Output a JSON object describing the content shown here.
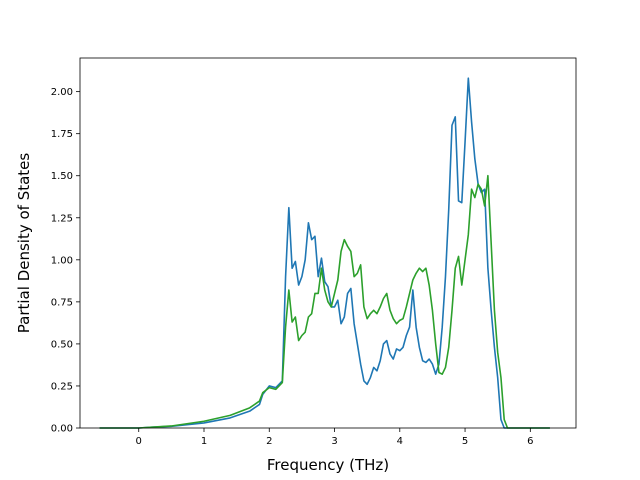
{
  "chart_data": {
    "type": "line",
    "xlabel": "Frequency (THz)",
    "ylabel": "Partial Density of States",
    "xlim": [
      -0.9,
      6.7
    ],
    "ylim": [
      0.0,
      2.2
    ],
    "xticks": [
      0,
      1,
      2,
      3,
      4,
      5,
      6
    ],
    "xtick_labels": [
      "0",
      "1",
      "2",
      "3",
      "4",
      "5",
      "6"
    ],
    "yticks": [
      0.0,
      0.25,
      0.5,
      0.75,
      1.0,
      1.25,
      1.5,
      1.75,
      2.0
    ],
    "ytick_labels": [
      "0.00",
      "0.25",
      "0.50",
      "0.75",
      "1.00",
      "1.25",
      "1.50",
      "1.75",
      "2.00"
    ],
    "grid": false,
    "series": [
      {
        "color": "#1f77b4",
        "x": [
          -0.6,
          0.0,
          0.2,
          0.5,
          1.0,
          1.4,
          1.7,
          1.85,
          1.9,
          2.0,
          2.1,
          2.2,
          2.25,
          2.3,
          2.35,
          2.4,
          2.45,
          2.5,
          2.55,
          2.6,
          2.65,
          2.7,
          2.75,
          2.8,
          2.85,
          2.9,
          2.95,
          3.0,
          3.05,
          3.1,
          3.15,
          3.2,
          3.25,
          3.3,
          3.35,
          3.4,
          3.45,
          3.5,
          3.55,
          3.6,
          3.65,
          3.7,
          3.75,
          3.8,
          3.85,
          3.9,
          3.95,
          4.0,
          4.05,
          4.1,
          4.15,
          4.2,
          4.25,
          4.3,
          4.35,
          4.4,
          4.45,
          4.5,
          4.55,
          4.6,
          4.65,
          4.7,
          4.75,
          4.8,
          4.85,
          4.9,
          4.95,
          5.0,
          5.05,
          5.1,
          5.15,
          5.2,
          5.25,
          5.3,
          5.35,
          5.4,
          5.45,
          5.5,
          5.55,
          5.6,
          5.65,
          5.7,
          5.75,
          5.8,
          6.0,
          6.3
        ],
        "y": [
          0.0,
          0.0,
          0.005,
          0.01,
          0.03,
          0.06,
          0.1,
          0.14,
          0.2,
          0.25,
          0.24,
          0.28,
          0.9,
          1.31,
          0.95,
          0.99,
          0.85,
          0.9,
          1.0,
          1.22,
          1.12,
          1.14,
          0.9,
          1.01,
          0.87,
          0.84,
          0.72,
          0.72,
          0.76,
          0.62,
          0.66,
          0.8,
          0.83,
          0.62,
          0.5,
          0.38,
          0.28,
          0.26,
          0.3,
          0.36,
          0.34,
          0.4,
          0.5,
          0.52,
          0.44,
          0.41,
          0.47,
          0.46,
          0.48,
          0.55,
          0.6,
          0.82,
          0.6,
          0.48,
          0.4,
          0.39,
          0.41,
          0.38,
          0.32,
          0.38,
          0.6,
          0.9,
          1.3,
          1.8,
          1.85,
          1.35,
          1.34,
          1.7,
          2.08,
          1.82,
          1.6,
          1.45,
          1.4,
          1.42,
          0.95,
          0.7,
          0.48,
          0.3,
          0.05,
          0.0,
          0.0,
          0.0,
          0.0,
          0.0,
          0.0,
          0.0
        ]
      },
      {
        "color": "#2ca02c",
        "x": [
          -0.6,
          0.0,
          0.2,
          0.5,
          1.0,
          1.4,
          1.7,
          1.85,
          1.9,
          2.0,
          2.1,
          2.2,
          2.25,
          2.3,
          2.35,
          2.4,
          2.45,
          2.5,
          2.55,
          2.6,
          2.65,
          2.7,
          2.75,
          2.8,
          2.85,
          2.9,
          2.95,
          3.0,
          3.05,
          3.1,
          3.15,
          3.2,
          3.25,
          3.3,
          3.35,
          3.4,
          3.45,
          3.5,
          3.55,
          3.6,
          3.65,
          3.7,
          3.75,
          3.8,
          3.85,
          3.9,
          3.95,
          4.0,
          4.05,
          4.1,
          4.15,
          4.2,
          4.25,
          4.3,
          4.35,
          4.4,
          4.45,
          4.5,
          4.55,
          4.6,
          4.65,
          4.7,
          4.75,
          4.8,
          4.85,
          4.9,
          4.95,
          5.0,
          5.05,
          5.1,
          5.15,
          5.2,
          5.25,
          5.3,
          5.35,
          5.4,
          5.45,
          5.5,
          5.55,
          5.6,
          5.65,
          5.7,
          5.75,
          5.8,
          6.0,
          6.3
        ],
        "y": [
          0.0,
          0.0,
          0.005,
          0.012,
          0.04,
          0.075,
          0.12,
          0.16,
          0.21,
          0.24,
          0.23,
          0.27,
          0.6,
          0.82,
          0.63,
          0.66,
          0.52,
          0.55,
          0.57,
          0.66,
          0.68,
          0.8,
          0.8,
          0.95,
          0.82,
          0.75,
          0.72,
          0.8,
          0.88,
          1.05,
          1.12,
          1.08,
          1.05,
          0.9,
          0.92,
          0.97,
          0.72,
          0.65,
          0.68,
          0.7,
          0.68,
          0.72,
          0.77,
          0.8,
          0.7,
          0.65,
          0.62,
          0.64,
          0.65,
          0.72,
          0.8,
          0.88,
          0.92,
          0.95,
          0.93,
          0.95,
          0.85,
          0.7,
          0.5,
          0.33,
          0.32,
          0.36,
          0.48,
          0.7,
          0.95,
          1.02,
          0.85,
          1.0,
          1.15,
          1.42,
          1.37,
          1.45,
          1.42,
          1.32,
          1.5,
          1.1,
          0.7,
          0.45,
          0.3,
          0.05,
          0.0,
          0.0,
          0.0,
          0.0,
          0.0,
          0.0
        ]
      }
    ]
  }
}
